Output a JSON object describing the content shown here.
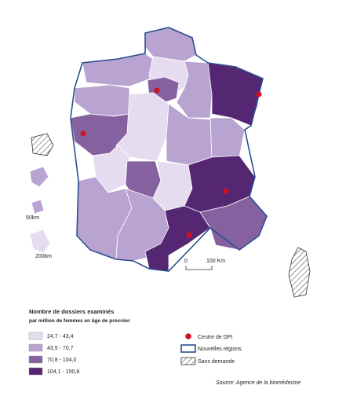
{
  "legend": {
    "title": "Nombre de dossiers examinés",
    "subtitle": "par million de femmes en âge de procréer",
    "classes": [
      {
        "label": "24,7 - 43,4",
        "color": "#e6dcef"
      },
      {
        "label": "43,5 - 70,7",
        "color": "#b9a3d0"
      },
      {
        "label": "70,8 - 104,0",
        "color": "#86619f"
      },
      {
        "label": "104,1 - 150,8",
        "color": "#552671"
      }
    ],
    "symbols": [
      "Centre de DPI",
      "Nouvelles régions",
      "Sans demande"
    ]
  },
  "scale": {
    "start": "0",
    "end": "100 Km"
  },
  "insets": [
    "50km",
    "200km"
  ],
  "source": "Source: Agence de la biomédecine"
}
